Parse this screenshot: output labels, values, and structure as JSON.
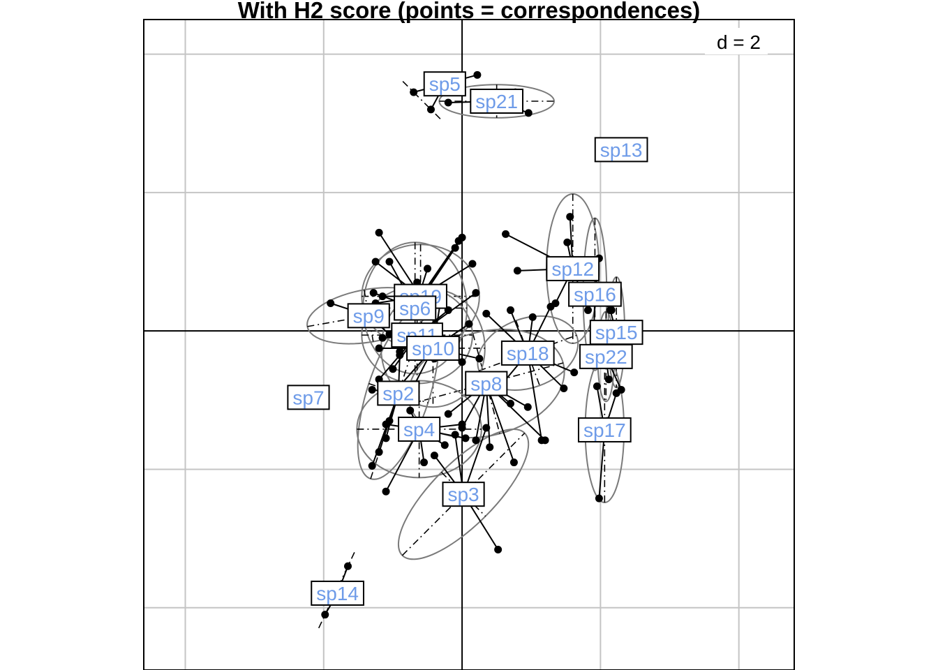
{
  "chart_data": {
    "type": "scatter",
    "title": "With H2 score (points = correspondences)",
    "scale_label": "d = 2",
    "grid_step": 2,
    "xlim": [
      -4.6,
      4.8
    ],
    "ylim": [
      -4.9,
      4.5
    ],
    "grid": true,
    "colors": {
      "label_text": "#6e9be8",
      "grid": "#c4c4c4",
      "ellipse": "#7a7a7a"
    },
    "groups": [
      {
        "name": "sp5",
        "center": [
          -0.25,
          3.57
        ],
        "ellipse": [
          0,
          0,
          0
        ],
        "points": [
          [
            -0.7,
            3.45
          ],
          [
            0.22,
            3.7
          ],
          [
            -0.45,
            3.2
          ]
        ]
      },
      {
        "name": "sp21",
        "center": [
          0.5,
          3.32
        ],
        "ellipse": [
          0.83,
          0.24,
          0
        ],
        "points": [
          [
            -0.2,
            3.3
          ],
          [
            0.77,
            3.45
          ],
          [
            0.96,
            3.15
          ],
          [
            0.18,
            3.2
          ]
        ]
      },
      {
        "name": "sp13",
        "center": [
          2.3,
          2.62
        ],
        "ellipse": [
          0,
          0,
          0
        ],
        "points": []
      },
      {
        "name": "sp12",
        "center": [
          1.6,
          0.9
        ],
        "ellipse": [
          0.38,
          1.08,
          0
        ],
        "points": [
          [
            0.63,
            1.4
          ],
          [
            0.8,
            0.87
          ],
          [
            1.56,
            1.65
          ],
          [
            1.52,
            1.28
          ],
          [
            1.7,
            0.62
          ],
          [
            1.35,
            0.4
          ]
        ]
      },
      {
        "name": "sp16",
        "center": [
          1.92,
          0.53
        ],
        "ellipse": [
          0.17,
          1.1,
          0
        ],
        "points": [
          [
            1.98,
            1.05
          ],
          [
            1.82,
            0.3
          ],
          [
            2.16,
            0.3
          ],
          [
            1.9,
            -0.2
          ]
        ]
      },
      {
        "name": "sp15",
        "center": [
          2.23,
          -0.02
        ],
        "ellipse": [
          0.12,
          0.8,
          0
        ],
        "points": [
          [
            2.14,
            0.3
          ],
          [
            2.3,
            -0.4
          ],
          [
            2.05,
            -0.3
          ]
        ]
      },
      {
        "name": "sp22",
        "center": [
          2.08,
          -0.37
        ],
        "ellipse": [
          0.12,
          0.65,
          0
        ],
        "points": [
          [
            1.95,
            -0.2
          ],
          [
            2.12,
            -0.7
          ],
          [
            2.3,
            -0.85
          ]
        ]
      },
      {
        "name": "sp17",
        "center": [
          2.06,
          -1.43
        ],
        "ellipse": [
          0.28,
          1.05,
          0
        ],
        "points": [
          [
            1.98,
            -2.42
          ],
          [
            2.23,
            -0.9
          ],
          [
            2.1,
            -1.3
          ],
          [
            1.95,
            -0.8
          ],
          [
            2.3,
            -1.5
          ]
        ]
      },
      {
        "name": "sp18",
        "center": [
          0.95,
          -0.32
        ],
        "ellipse": [
          0.75,
          0.5,
          -20
        ],
        "points": [
          [
            0.7,
            0.3
          ],
          [
            1.28,
            0.35
          ],
          [
            1.02,
            0.2
          ],
          [
            1.62,
            -0.6
          ],
          [
            1.47,
            -0.83
          ],
          [
            1.15,
            -1.58
          ],
          [
            0.35,
            0.25
          ],
          [
            0.55,
            -0.8
          ]
        ]
      },
      {
        "name": "sp8",
        "center": [
          0.35,
          -0.76
        ],
        "ellipse": [
          1.15,
          0.75,
          -15
        ],
        "points": [
          [
            0.75,
            -1.9
          ],
          [
            1.2,
            -1.58
          ],
          [
            0.0,
            -1.4
          ],
          [
            -0.2,
            -1.2
          ],
          [
            0.7,
            -1.05
          ],
          [
            0.95,
            -1.1
          ],
          [
            0.4,
            -1.68
          ],
          [
            0.2,
            -1.58
          ]
        ]
      },
      {
        "name": "sp19",
        "center": [
          -0.6,
          0.5
        ],
        "ellipse": [
          0.85,
          0.75,
          0
        ],
        "points": [
          [
            -1.2,
            1.42
          ],
          [
            -1.25,
            1.0
          ],
          [
            -0.05,
            1.3
          ],
          [
            -0.1,
            1.2
          ],
          [
            -0.65,
            0.7
          ],
          [
            0.15,
            0.97
          ],
          [
            -1.15,
            0.5
          ],
          [
            -1.25,
            0.4
          ]
        ]
      },
      {
        "name": "sp6",
        "center": [
          -0.68,
          0.33
        ],
        "ellipse": [
          0.75,
          0.95,
          0
        ],
        "points": [
          [
            -1.05,
            1.0
          ],
          [
            -0.5,
            0.9
          ],
          [
            -1.28,
            0.55
          ],
          [
            0.0,
            1.35
          ]
        ]
      },
      {
        "name": "sp9",
        "center": [
          -1.35,
          0.22
        ],
        "ellipse": [
          0.9,
          0.38,
          -10
        ],
        "points": [
          [
            -1.9,
            0.4
          ],
          [
            -1.1,
            0.3
          ],
          [
            -1.2,
            0.1
          ],
          [
            -1.05,
            -0.05
          ]
        ]
      },
      {
        "name": "sp11",
        "center": [
          -0.65,
          -0.06
        ],
        "ellipse": [
          0.8,
          0.7,
          0
        ],
        "points": [
          [
            -1.2,
            -0.7
          ],
          [
            -1.15,
            -0.1
          ],
          [
            -0.9,
            -0.3
          ],
          [
            -1.0,
            -0.55
          ],
          [
            -0.2,
            0.3
          ],
          [
            0.2,
            0.55
          ],
          [
            -0.4,
            -0.4
          ]
        ]
      },
      {
        "name": "sp10",
        "center": [
          -0.42,
          -0.25
        ],
        "ellipse": [
          0.75,
          0.85,
          0
        ],
        "points": [
          [
            -0.7,
            -0.8
          ],
          [
            0.0,
            -0.45
          ],
          [
            0.1,
            0.1
          ],
          [
            -0.95,
            -0.85
          ],
          [
            -0.3,
            0.5
          ],
          [
            -1.2,
            -0.25
          ],
          [
            0.25,
            -0.4
          ]
        ]
      },
      {
        "name": "sp2",
        "center": [
          -0.92,
          -0.9
        ],
        "ellipse": [
          1.3,
          0.45,
          -72
        ],
        "points": [
          [
            -1.3,
            -0.85
          ],
          [
            -1.3,
            -1.95
          ],
          [
            -1.05,
            -1.3
          ],
          [
            -1.1,
            -1.55
          ],
          [
            -0.9,
            -0.35
          ],
          [
            -1.2,
            -1.75
          ]
        ]
      },
      {
        "name": "sp4",
        "center": [
          -0.62,
          -1.42
        ],
        "ellipse": [
          0.9,
          0.7,
          0
        ],
        "points": [
          [
            -1.1,
            -2.32
          ],
          [
            -0.55,
            -1.9
          ],
          [
            -0.25,
            -1.65
          ],
          [
            0.0,
            -1.35
          ],
          [
            -0.75,
            -1.15
          ],
          [
            0.05,
            -1.55
          ],
          [
            -1.1,
            -1.35
          ]
        ]
      },
      {
        "name": "sp3",
        "center": [
          0.02,
          -2.36
        ],
        "ellipse": [
          1.25,
          0.45,
          -45
        ],
        "points": [
          [
            0.52,
            -3.16
          ],
          [
            -0.4,
            -1.8
          ],
          [
            -0.1,
            -1.5
          ],
          [
            0.35,
            -1.4
          ]
        ]
      },
      {
        "name": "sp7",
        "center": [
          -2.22,
          -0.96
        ],
        "ellipse": [
          0,
          0,
          0
        ],
        "points": []
      },
      {
        "name": "sp14",
        "center": [
          -1.8,
          -3.79
        ],
        "ellipse": [
          0,
          0,
          0
        ],
        "points": [
          [
            -1.65,
            -3.4
          ],
          [
            -1.98,
            -4.1
          ]
        ]
      }
    ]
  }
}
